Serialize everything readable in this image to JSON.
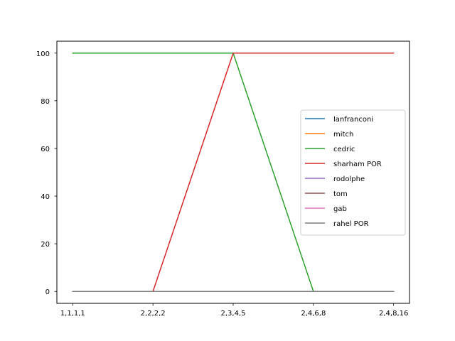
{
  "chart_data": {
    "type": "line",
    "categories": [
      "1,1,1,1",
      "2,2,2,2",
      "2,3,4,5",
      "2,4,6,8",
      "2,4,8,16"
    ],
    "ylim": [
      -5,
      105
    ],
    "yticks": [
      0,
      20,
      40,
      60,
      80,
      100
    ],
    "grid": false,
    "legend_position": "center-right",
    "series": [
      {
        "name": "lanfranconi",
        "color": "#1f77b4",
        "values": [
          0,
          0,
          0,
          0,
          0
        ]
      },
      {
        "name": "mitch",
        "color": "#ff7f0e",
        "values": [
          0,
          0,
          0,
          0,
          0
        ]
      },
      {
        "name": "cedric",
        "color": "#2ca02c",
        "values": [
          100,
          100,
          100,
          0,
          0
        ]
      },
      {
        "name": "sharham POR",
        "color": "#d62728",
        "values": [
          0,
          0,
          100,
          100,
          100
        ]
      },
      {
        "name": "rodolphe",
        "color": "#9467bd",
        "values": [
          0,
          0,
          0,
          0,
          0
        ]
      },
      {
        "name": "tom",
        "color": "#8c564b",
        "values": [
          0,
          0,
          0,
          0,
          0
        ]
      },
      {
        "name": "gab",
        "color": "#e377c2",
        "values": [
          0,
          0,
          0,
          0,
          0
        ]
      },
      {
        "name": "rahel POR",
        "color": "#7f7f7f",
        "values": [
          0,
          0,
          0,
          0,
          0
        ]
      }
    ]
  }
}
